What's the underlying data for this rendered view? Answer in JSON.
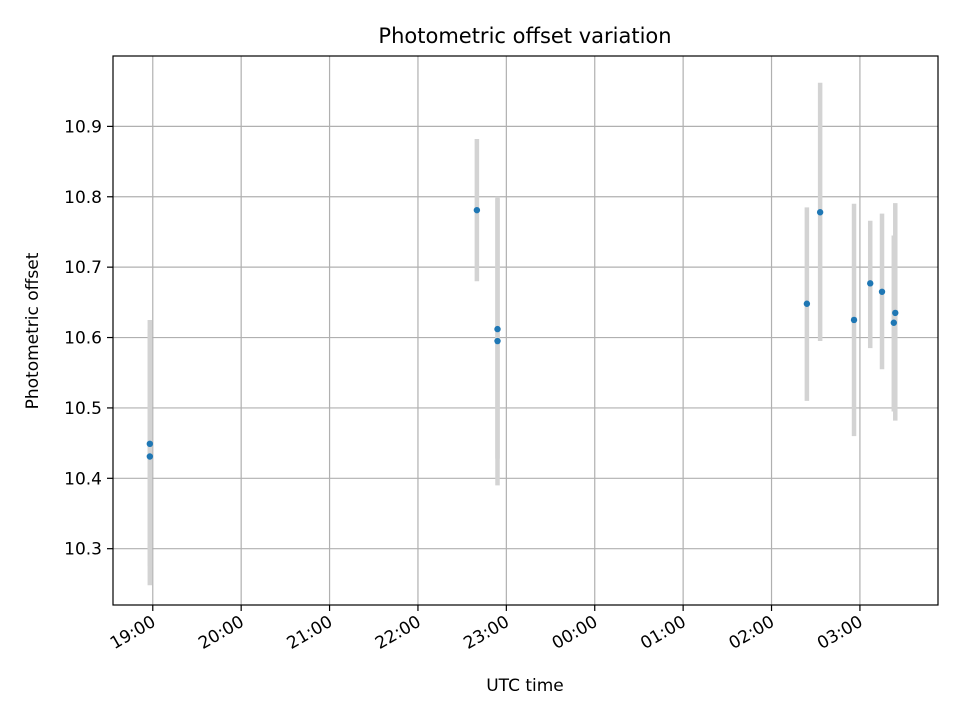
{
  "chart_data": {
    "type": "scatter",
    "title": "Photometric offset variation",
    "xlabel": "UTC time",
    "ylabel": "Photometric offset",
    "grid": true,
    "x_ticks": [
      "19:00",
      "20:00",
      "21:00",
      "22:00",
      "23:00",
      "00:00",
      "01:00",
      "02:00",
      "03:00"
    ],
    "y_ticks": [
      10.3,
      10.4,
      10.5,
      10.6,
      10.7,
      10.8,
      10.9
    ],
    "ylim": [
      10.22,
      11.0
    ],
    "xlim": [
      "18:33",
      "03:53"
    ],
    "colors": {
      "point": "#1f77b4",
      "errorbar": "#d3d3d3",
      "grid": "#b0b0b0"
    },
    "series": [
      {
        "points": [
          {
            "x": "18:58",
            "y": 10.449,
            "ylow": 10.275,
            "yhigh": 10.625
          },
          {
            "x": "18:58",
            "y": 10.431,
            "ylow": 10.248,
            "yhigh": 10.612
          },
          {
            "x": "22:40",
            "y": 10.781,
            "ylow": 10.68,
            "yhigh": 10.882
          },
          {
            "x": "22:54",
            "y": 10.612,
            "ylow": 10.428,
            "yhigh": 10.797
          },
          {
            "x": "22:54",
            "y": 10.595,
            "ylow": 10.39,
            "yhigh": 10.8
          },
          {
            "x": "02:24",
            "y": 10.648,
            "ylow": 10.51,
            "yhigh": 10.785
          },
          {
            "x": "02:33",
            "y": 10.778,
            "ylow": 10.595,
            "yhigh": 10.962
          },
          {
            "x": "02:56",
            "y": 10.625,
            "ylow": 10.46,
            "yhigh": 10.79
          },
          {
            "x": "03:07",
            "y": 10.677,
            "ylow": 10.585,
            "yhigh": 10.766
          },
          {
            "x": "03:15",
            "y": 10.665,
            "ylow": 10.555,
            "yhigh": 10.776
          },
          {
            "x": "03:24",
            "y": 10.635,
            "ylow": 10.482,
            "yhigh": 10.791
          },
          {
            "x": "03:23",
            "y": 10.621,
            "ylow": 10.495,
            "yhigh": 10.745
          }
        ]
      }
    ]
  }
}
